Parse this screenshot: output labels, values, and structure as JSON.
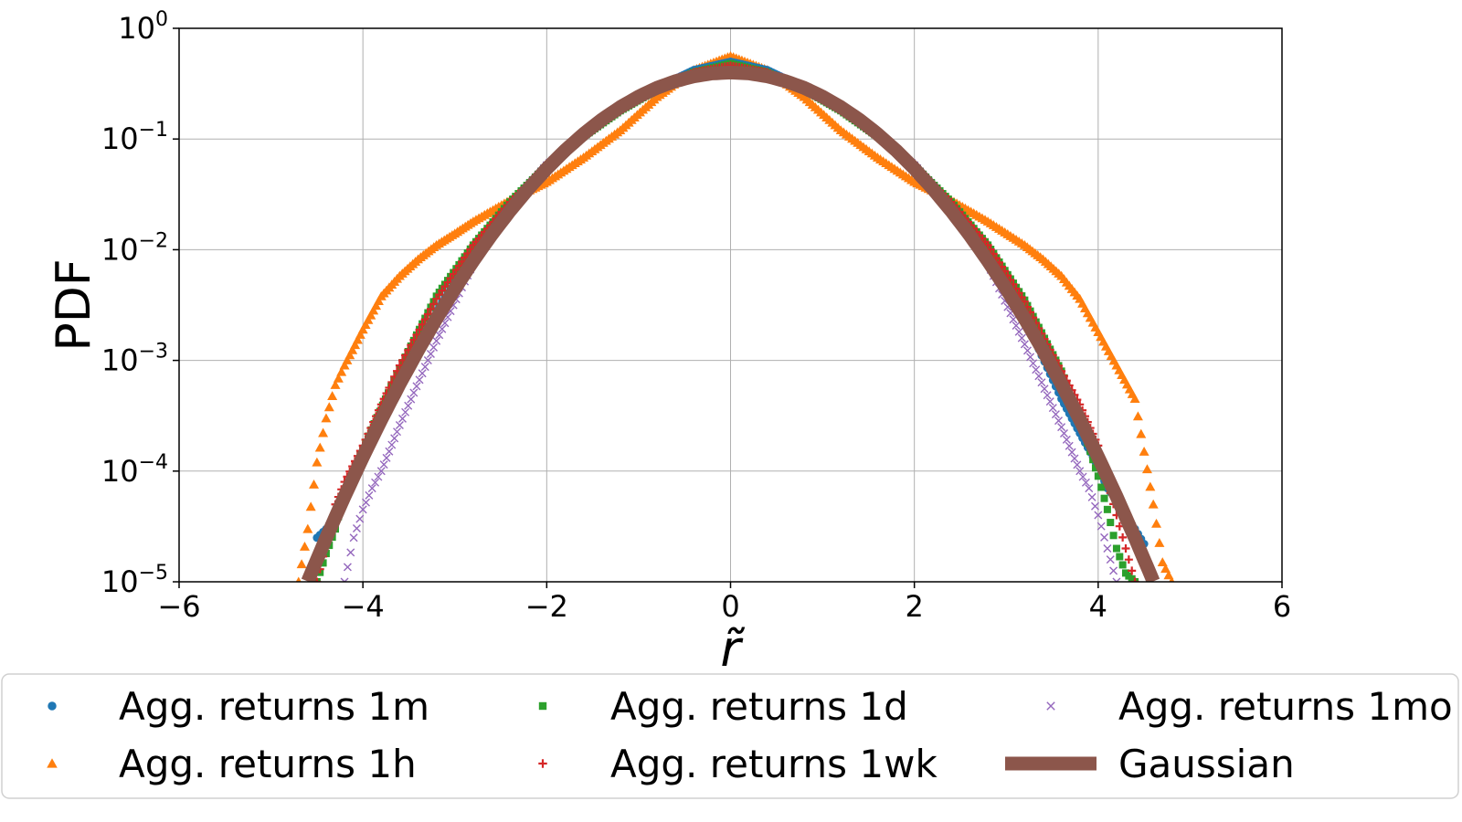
{
  "chart_data": {
    "type": "scatter",
    "title": "",
    "xlabel": "r̃",
    "ylabel": "PDF",
    "xlim": [
      -6,
      6
    ],
    "ylim": [
      1e-05,
      1
    ],
    "yscale": "log",
    "grid": true,
    "legend_placement": "bottom",
    "x_ticks": [
      "−6",
      "−4",
      "−2",
      "0",
      "2",
      "4",
      "6"
    ],
    "y_ticks": [
      {
        "base": "10",
        "exp": "0"
      },
      {
        "base": "10",
        "exp": "−1"
      },
      {
        "base": "10",
        "exp": "−2"
      },
      {
        "base": "10",
        "exp": "−3"
      },
      {
        "base": "10",
        "exp": "−4"
      },
      {
        "base": "10",
        "exp": "−5"
      }
    ],
    "series": [
      {
        "name": "Agg. returns 1m",
        "marker": "circle",
        "color": "#1f77b4",
        "x": [
          -4.5,
          -4.4,
          -4.3,
          -4.2,
          -4.0,
          -3.6,
          -3.2,
          -2.8,
          -2.4,
          -2.0,
          -1.6,
          -1.2,
          -0.8,
          -0.4,
          0.0,
          0.4,
          0.8,
          1.2,
          1.6,
          2.0,
          2.4,
          2.8,
          3.2,
          3.6,
          3.8,
          4.0,
          4.1,
          4.2,
          4.3,
          4.4,
          4.5
        ],
        "y": [
          2.5e-05,
          3e-05,
          4e-05,
          6e-05,
          0.00013,
          0.00055,
          0.0028,
          0.0095,
          0.026,
          0.058,
          0.11,
          0.19,
          0.29,
          0.42,
          0.5,
          0.42,
          0.29,
          0.19,
          0.11,
          0.058,
          0.026,
          0.009,
          0.0024,
          0.00045,
          0.00022,
          0.00011,
          7e-05,
          5.5e-05,
          4e-05,
          3e-05,
          2.2e-05
        ]
      },
      {
        "name": "Agg. returns 1h",
        "marker": "triangle",
        "color": "#ff7f0e",
        "x": [
          -4.7,
          -4.6,
          -4.5,
          -4.4,
          -4.3,
          -4.2,
          -4.0,
          -3.8,
          -3.6,
          -3.4,
          -3.2,
          -3.0,
          -2.8,
          -2.4,
          -2.0,
          -1.6,
          -1.2,
          -0.8,
          -0.4,
          0.0,
          0.4,
          0.8,
          1.2,
          1.6,
          2.0,
          2.4,
          2.8,
          3.2,
          3.4,
          3.6,
          3.8,
          4.0,
          4.2,
          4.4,
          4.5,
          4.6,
          4.7,
          4.8
        ],
        "y": [
          1e-05,
          3e-05,
          0.00012,
          0.0003,
          0.0006,
          0.0009,
          0.0019,
          0.0038,
          0.0058,
          0.0082,
          0.011,
          0.014,
          0.018,
          0.028,
          0.041,
          0.068,
          0.12,
          0.24,
          0.42,
          0.56,
          0.42,
          0.24,
          0.12,
          0.068,
          0.041,
          0.028,
          0.018,
          0.011,
          0.0082,
          0.0058,
          0.0036,
          0.0018,
          0.0009,
          0.00045,
          0.00015,
          5e-05,
          1.5e-05,
          1e-05
        ]
      },
      {
        "name": "Agg. returns 1d",
        "marker": "square",
        "color": "#2ca02c",
        "x": [
          -4.5,
          -4.4,
          -4.3,
          -4.2,
          -4.0,
          -3.6,
          -3.2,
          -2.8,
          -2.4,
          -2.0,
          -1.6,
          -1.2,
          -0.8,
          -0.4,
          0.0,
          0.4,
          0.8,
          1.2,
          1.6,
          2.0,
          2.4,
          2.8,
          3.2,
          3.6,
          3.8,
          4.0,
          4.1,
          4.2,
          4.3,
          4.4
        ],
        "y": [
          1e-05,
          1.8e-05,
          3e-05,
          6.5e-05,
          0.00016,
          0.00085,
          0.0038,
          0.011,
          0.027,
          0.057,
          0.105,
          0.18,
          0.28,
          0.4,
          0.48,
          0.4,
          0.28,
          0.18,
          0.105,
          0.057,
          0.027,
          0.011,
          0.0035,
          0.0008,
          0.0003,
          9e-05,
          4.5e-05,
          2e-05,
          1.2e-05,
          1e-05
        ]
      },
      {
        "name": "Agg. returns 1wk",
        "marker": "plus",
        "color": "#d62728",
        "x": [
          -4.5,
          -4.4,
          -4.3,
          -4.2,
          -4.0,
          -3.8,
          -3.6,
          -3.2,
          -2.8,
          -2.4,
          -2.0,
          -1.6,
          -1.2,
          -0.8,
          -0.4,
          0.0,
          0.4,
          0.8,
          1.2,
          1.6,
          2.0,
          2.4,
          2.8,
          3.2,
          3.6,
          3.8,
          4.0,
          4.1,
          4.2,
          4.3,
          4.4
        ],
        "y": [
          1e-05,
          2.2e-05,
          5e-05,
          8e-05,
          0.00017,
          0.0004,
          0.0009,
          0.0036,
          0.011,
          0.027,
          0.057,
          0.105,
          0.18,
          0.28,
          0.4,
          0.46,
          0.4,
          0.28,
          0.18,
          0.105,
          0.057,
          0.027,
          0.011,
          0.0034,
          0.0008,
          0.0004,
          0.00017,
          8e-05,
          4e-05,
          2e-05,
          1e-05
        ]
      },
      {
        "name": "Agg. returns 1mo",
        "marker": "x",
        "color": "#9467bd",
        "x": [
          -4.2,
          -4.1,
          -4.0,
          -3.9,
          -3.8,
          -3.6,
          -3.2,
          -2.8,
          -2.4,
          -2.0,
          -1.6,
          -1.2,
          -0.8,
          -0.4,
          0.0,
          0.4,
          0.8,
          1.2,
          1.6,
          2.0,
          2.4,
          2.8,
          3.2,
          3.6,
          3.8,
          3.9,
          4.0,
          4.1,
          4.2
        ],
        "y": [
          1e-05,
          2.5e-05,
          4.5e-05,
          7e-05,
          0.0001,
          0.00026,
          0.0015,
          0.0075,
          0.025,
          0.058,
          0.11,
          0.19,
          0.29,
          0.41,
          0.46,
          0.41,
          0.29,
          0.19,
          0.11,
          0.058,
          0.025,
          0.0075,
          0.0014,
          0.00025,
          0.0001,
          7e-05,
          4e-05,
          2e-05,
          1e-05
        ]
      },
      {
        "name": "Gaussian",
        "marker": "line",
        "color": "#8c564b",
        "x": [
          -4.6,
          -4.4,
          -4.2,
          -4.0,
          -3.8,
          -3.6,
          -3.4,
          -3.2,
          -3.0,
          -2.8,
          -2.6,
          -2.4,
          -2.2,
          -2.0,
          -1.8,
          -1.6,
          -1.4,
          -1.2,
          -1.0,
          -0.8,
          -0.6,
          -0.4,
          -0.2,
          0.0,
          0.2,
          0.4,
          0.6,
          0.8,
          1.0,
          1.2,
          1.4,
          1.6,
          1.8,
          2.0,
          2.2,
          2.4,
          2.6,
          2.8,
          3.0,
          3.2,
          3.4,
          3.6,
          3.8,
          4.0,
          4.2,
          4.4,
          4.6
        ],
        "y": [
          1.01e-05,
          2.49e-05,
          5.89e-05,
          0.000134,
          0.000292,
          0.000612,
          0.00123,
          0.00238,
          0.00443,
          0.00792,
          0.0136,
          0.0224,
          0.0355,
          0.054,
          0.079,
          0.111,
          0.15,
          0.194,
          0.242,
          0.29,
          0.333,
          0.368,
          0.391,
          0.399,
          0.391,
          0.368,
          0.333,
          0.29,
          0.242,
          0.194,
          0.15,
          0.111,
          0.079,
          0.054,
          0.0355,
          0.0224,
          0.0136,
          0.00792,
          0.00443,
          0.00238,
          0.00123,
          0.000612,
          0.000292,
          0.000134,
          5.89e-05,
          2.49e-05,
          1.01e-05
        ]
      }
    ]
  }
}
